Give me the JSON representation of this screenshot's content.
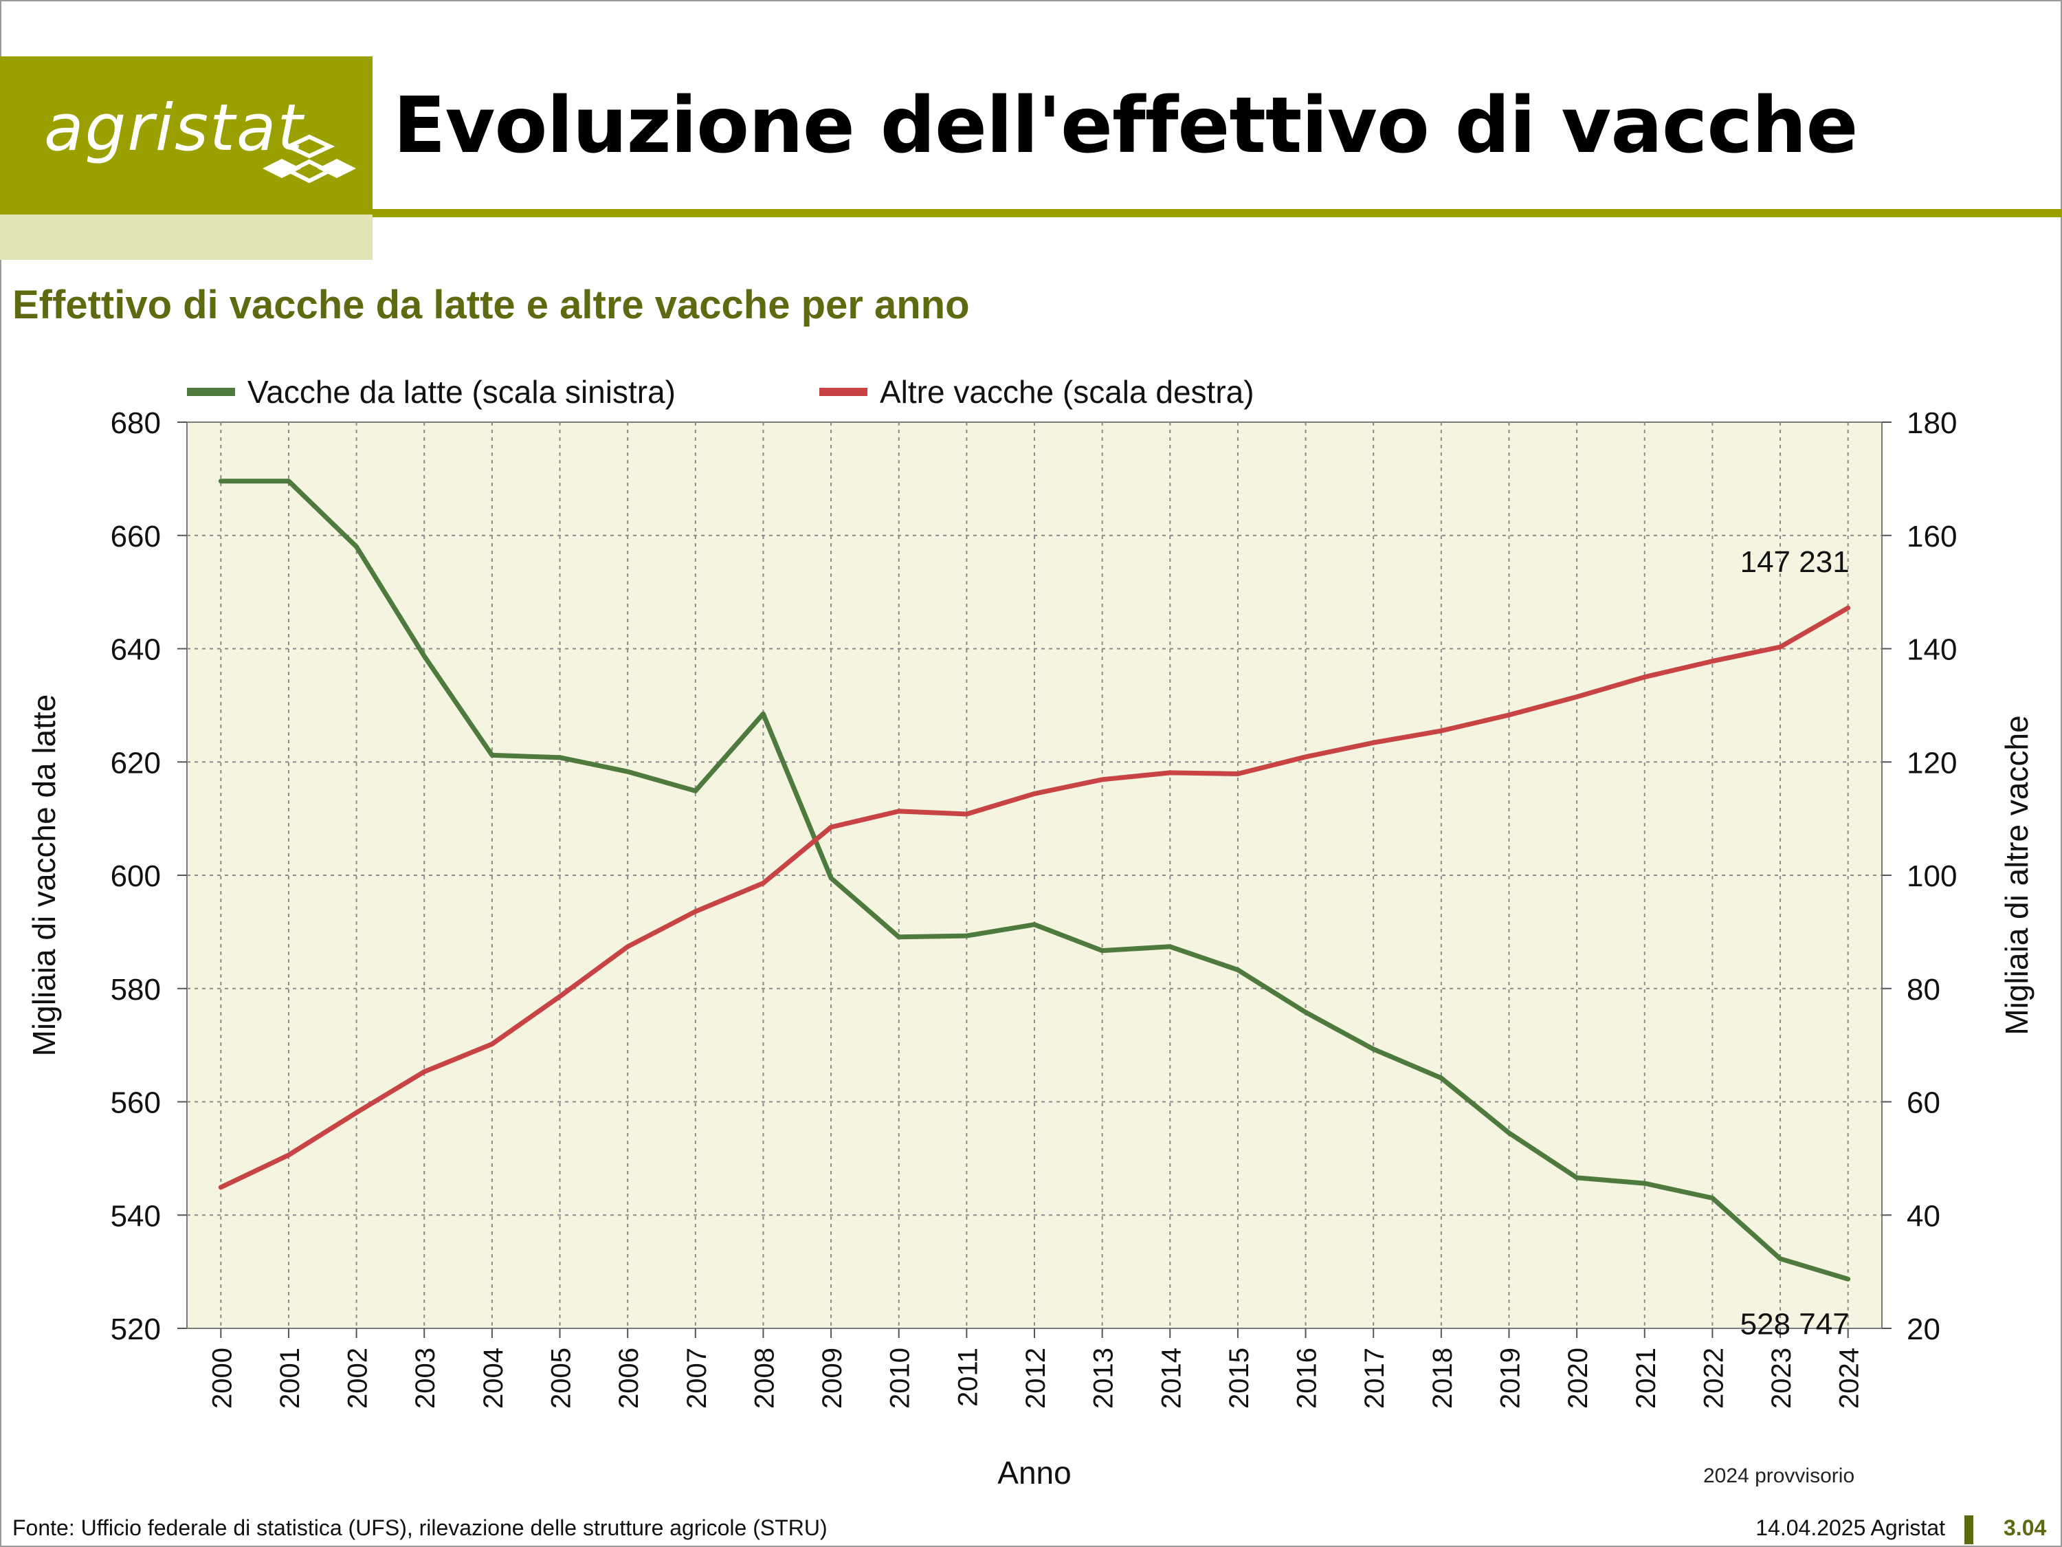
{
  "header": {
    "logo_text": "agristat",
    "title": "Evoluzione dell'effettivo di vacche",
    "brand_color": "#9aa000"
  },
  "subtitle": "Effettivo di vacche da latte e altre vacche per anno",
  "chart_data": {
    "type": "line",
    "x": [
      2000,
      2001,
      2002,
      2003,
      2004,
      2005,
      2006,
      2007,
      2008,
      2009,
      2010,
      2011,
      2012,
      2013,
      2014,
      2015,
      2016,
      2017,
      2018,
      2019,
      2020,
      2021,
      2022,
      2023,
      2024
    ],
    "xlabel": "Anno",
    "ylabel_left": "Migliaia di vacche da latte",
    "ylabel_right": "Migliaia di altre vacche",
    "ylim_left": [
      520,
      680
    ],
    "ylim_right": [
      20,
      180
    ],
    "yticks_left": [
      520,
      540,
      560,
      580,
      600,
      620,
      640,
      660,
      680
    ],
    "yticks_right": [
      20,
      40,
      60,
      80,
      100,
      120,
      140,
      160,
      180
    ],
    "grid": true,
    "legend_position": "top",
    "plot_background": "#f4f4e0",
    "series": [
      {
        "name": "Vacche da latte (scala sinistra)",
        "axis": "left",
        "color": "#4e7a3e",
        "values": [
          669.6,
          669.6,
          658.0,
          638.7,
          621.2,
          620.8,
          618.3,
          614.9,
          628.5,
          599.5,
          589.1,
          589.3,
          591.3,
          586.7,
          587.4,
          583.3,
          575.8,
          569.3,
          564.2,
          554.5,
          546.6,
          545.6,
          543.0,
          532.3,
          528.7
        ]
      },
      {
        "name": "Altre vacche (scala destra)",
        "axis": "right",
        "color": "#c84444",
        "values": [
          44.9,
          50.6,
          58.1,
          65.3,
          70.2,
          78.6,
          87.4,
          93.6,
          98.6,
          108.5,
          111.3,
          110.8,
          114.4,
          116.9,
          118.1,
          117.9,
          120.9,
          123.4,
          125.5,
          128.3,
          131.5,
          135.0,
          137.8,
          140.3,
          147.2
        ]
      }
    ],
    "annotations": [
      {
        "text": "147 231",
        "series": 1,
        "x": 2024
      },
      {
        "text": "528 747",
        "series": 0,
        "x": 2024
      }
    ],
    "note": "2024 provvisorio"
  },
  "footer": {
    "source": "Fonte: Ufficio federale di statistica (UFS), rilevazione delle strutture agricole (STRU)",
    "date": "14.04.2025 Agristat",
    "page_number": "3.04"
  }
}
